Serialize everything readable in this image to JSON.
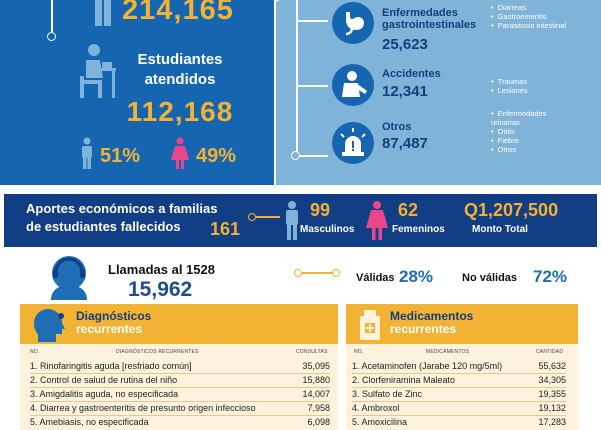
{
  "top_left": {
    "total_value": "214,165",
    "students_label": "Estudiantes atendidos",
    "students_value": "112,168",
    "male_pct": "51%",
    "female_pct": "49%"
  },
  "categories": [
    {
      "title": "Enfermedades gastrointestinales",
      "value": "25,623",
      "items": [
        "Diarreas",
        "Gastroenteritis",
        "Parasitosis intestinal"
      ],
      "icon": "stomach-icon"
    },
    {
      "title": "Accidentes",
      "value": "12,341",
      "items": [
        "Traumas",
        "Lesiones"
      ],
      "icon": "injured-person-icon"
    },
    {
      "title": "Otros",
      "value": "87,487",
      "items": [
        "Enfermedades urinarias",
        "Otitis",
        "Fiebre",
        "Otros"
      ],
      "icon": "alarm-light-icon"
    }
  ],
  "aportes": {
    "label_line1": "Aportes económicos a familias",
    "label_line2": "de estudiantes fallecidos",
    "total_students": "161",
    "male_value": "99",
    "male_label": "Masculinos",
    "female_value": "62",
    "female_label": "Femeninos",
    "amount_value": "Q1,207,500",
    "amount_label": "Monto Total"
  },
  "calls": {
    "title": "Llamadas al 1528",
    "value": "15,962",
    "valid_label": "Válidas",
    "valid_pct": "28%",
    "invalid_label": "No válidas",
    "invalid_pct": "72%"
  },
  "diagnosticos": {
    "title": "Diagnósticos",
    "subtitle": "recurrentes",
    "col_no": "NO.",
    "col_name": "DIAGNÓSTICOS RECURRENTES",
    "col_value": "CONSULTAS",
    "rows": [
      {
        "label": "1. Rinofaringitis aguda [resfriado común]",
        "value": "35,095"
      },
      {
        "label": "2. Control de salud de rutina del niño",
        "value": "15,880"
      },
      {
        "label": "3. Amigdalitis aguda, no especificada",
        "value": "14,007"
      },
      {
        "label": "4. Diarrea y gastroenteritis de presunto origen infeccioso",
        "value": "7,958"
      },
      {
        "label": "5. Amebiasis, no especificada",
        "value": "6,098"
      }
    ]
  },
  "medicamentos": {
    "title": "Medicamentos",
    "subtitle": "recurrentes",
    "col_no": "NO.",
    "col_name": "MEDICAMENTOS",
    "col_value": "CANTIDAD",
    "rows": [
      {
        "label": "1. Acetaminofen (Jarabe 120 mg/5ml)",
        "value": "55,632"
      },
      {
        "label": "2. Clorfeniramina Maleato",
        "value": "34,305"
      },
      {
        "label": "3. Sulfato de Zinc",
        "value": "19,355"
      },
      {
        "label": "4. Ambroxol",
        "value": "19,132"
      },
      {
        "label": "5. Amoxicilina",
        "value": "17,283"
      }
    ]
  },
  "colors": {
    "dark_blue": "#1565b0",
    "light_blue": "#7fb3d8",
    "navy": "#123e86",
    "gold": "#f2b233",
    "pink": "#e8478c",
    "cream": "#fdf2dc"
  }
}
